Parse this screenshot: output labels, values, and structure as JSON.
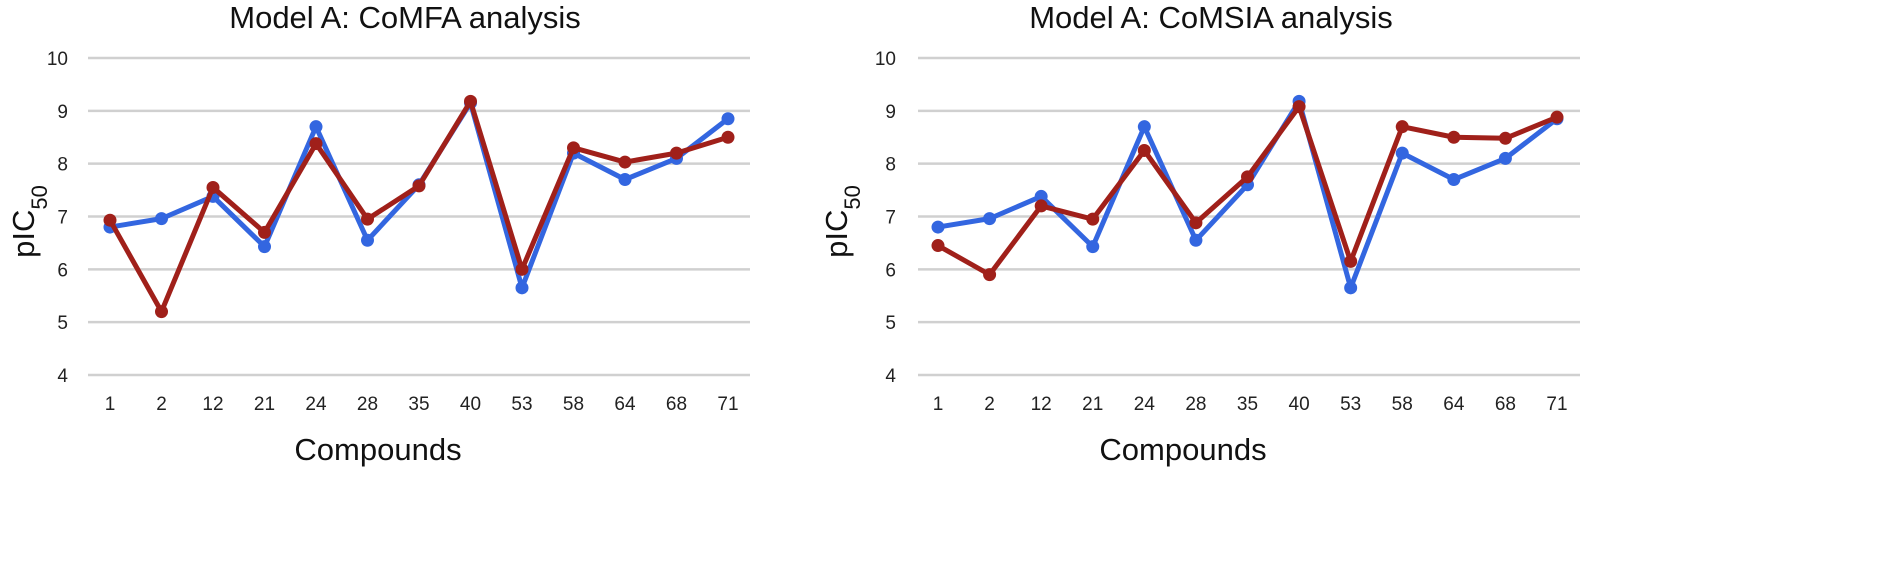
{
  "chart_data": [
    {
      "type": "line",
      "title": "Model A: CoMFA analysis",
      "xlabel": "Compounds",
      "ylabel": "pIC50",
      "ylim": [
        4,
        10
      ],
      "yticks": [
        4,
        5,
        6,
        7,
        8,
        9,
        10
      ],
      "grid": true,
      "categories": [
        "1",
        "2",
        "12",
        "21",
        "24",
        "28",
        "35",
        "40",
        "53",
        "58",
        "64",
        "68",
        "71"
      ],
      "series": [
        {
          "color": "#3366e0",
          "values": [
            6.8,
            6.96,
            7.38,
            6.43,
            8.7,
            6.55,
            7.6,
            9.15,
            5.65,
            8.2,
            7.7,
            8.1,
            8.85
          ]
        },
        {
          "color": "#a0201a",
          "values": [
            6.93,
            5.2,
            7.55,
            6.7,
            8.38,
            6.95,
            7.58,
            9.18,
            6.0,
            8.3,
            8.03,
            8.2,
            8.5
          ]
        }
      ]
    },
    {
      "type": "line",
      "title": "Model A: CoMSIA analysis",
      "xlabel": "Compounds",
      "ylabel": "pIC50",
      "ylim": [
        4,
        10
      ],
      "yticks": [
        4,
        5,
        6,
        7,
        8,
        9,
        10
      ],
      "grid": true,
      "categories": [
        "1",
        "2",
        "12",
        "21",
        "24",
        "28",
        "35",
        "40",
        "53",
        "58",
        "64",
        "68",
        "71"
      ],
      "series": [
        {
          "color": "#3366e0",
          "values": [
            6.8,
            6.96,
            7.38,
            6.43,
            8.7,
            6.55,
            7.6,
            9.18,
            5.65,
            8.2,
            7.7,
            8.1,
            8.85
          ]
        },
        {
          "color": "#a0201a",
          "values": [
            6.45,
            5.9,
            7.2,
            6.95,
            8.25,
            6.88,
            7.75,
            9.08,
            6.15,
            8.7,
            8.5,
            8.48,
            8.88
          ]
        }
      ]
    }
  ]
}
